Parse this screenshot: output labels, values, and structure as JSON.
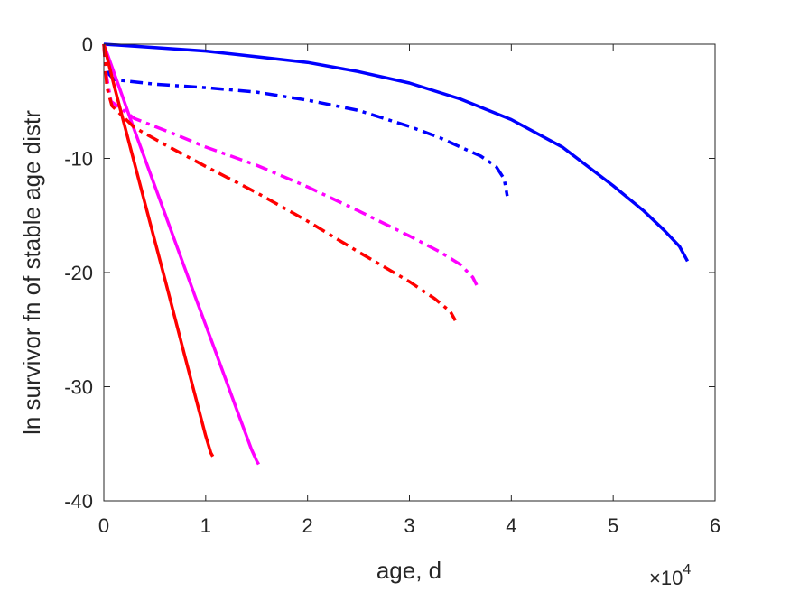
{
  "chart_data": {
    "type": "line",
    "title": "",
    "xlabel": "age, d",
    "ylabel": "ln survivor fn of stable age distr",
    "x_exponent_label": {
      "base": "×10",
      "exp": "4"
    },
    "xlim": [
      0,
      60000
    ],
    "ylim": [
      -40,
      0
    ],
    "xticks": [
      0,
      10000,
      20000,
      30000,
      40000,
      50000,
      60000
    ],
    "xtick_labels": [
      "0",
      "1",
      "2",
      "3",
      "4",
      "5",
      "6"
    ],
    "yticks": [
      0,
      -10,
      -20,
      -30,
      -40
    ],
    "ytick_labels": [
      "0",
      "-10",
      "-20",
      "-30",
      "-40"
    ],
    "grid": false,
    "legend": "none",
    "series": [
      {
        "color": "#0000ff",
        "style": "solid",
        "x": [
          0,
          5000,
          10000,
          15000,
          20000,
          25000,
          30000,
          35000,
          40000,
          45000,
          50000,
          53000,
          55000,
          56500,
          57300
        ],
        "y": [
          0,
          -0.3,
          -0.6,
          -1.1,
          -1.6,
          -2.4,
          -3.4,
          -4.8,
          -6.6,
          -9.0,
          -12.4,
          -14.6,
          -16.3,
          -17.7,
          -19
        ]
      },
      {
        "color": "#0000ff",
        "style": "dashdot",
        "x": [
          0,
          200,
          500,
          1000,
          5000,
          10000,
          15000,
          20000,
          25000,
          30000,
          33000,
          35000,
          37000,
          38500,
          39300,
          39600
        ],
        "y": [
          0,
          -1.7,
          -2.6,
          -3.1,
          -3.5,
          -3.8,
          -4.2,
          -4.9,
          -5.8,
          -7.2,
          -8.2,
          -9.0,
          -9.8,
          -10.7,
          -11.8,
          -13.3
        ]
      },
      {
        "color": "#ff00ff",
        "style": "solid",
        "x": [
          0,
          1000,
          3000,
          5000,
          7000,
          9000,
          11000,
          13000,
          14500,
          15000,
          15200
        ],
        "y": [
          0,
          -2.5,
          -7.5,
          -12.4,
          -17.3,
          -22.2,
          -27.0,
          -31.9,
          -35.5,
          -36.5,
          -36.8
        ]
      },
      {
        "color": "#ff00ff",
        "style": "dashdot",
        "x": [
          0,
          200,
          700,
          3000,
          7000,
          10000,
          15000,
          20000,
          25000,
          30000,
          33000,
          35000,
          36200,
          36600
        ],
        "y": [
          0,
          -2.5,
          -5.0,
          -6.5,
          -7.9,
          -9.0,
          -10.6,
          -12.5,
          -14.6,
          -16.8,
          -18.2,
          -19.3,
          -20.4,
          -21.1
        ]
      },
      {
        "color": "#ff0000",
        "style": "solid",
        "x": [
          0,
          1000,
          2000,
          4000,
          6000,
          8000,
          10000,
          10500,
          10700
        ],
        "y": [
          0,
          -3.6,
          -7.0,
          -13.8,
          -20.6,
          -27.5,
          -34.3,
          -35.8,
          -36.1
        ]
      },
      {
        "color": "#ff0000",
        "style": "dashdot",
        "x": [
          0,
          300,
          800,
          3000,
          6000,
          10000,
          15000,
          20000,
          25000,
          30000,
          32500,
          34000,
          34500
        ],
        "y": [
          0,
          -3.8,
          -5.4,
          -7.3,
          -8.8,
          -10.7,
          -13.0,
          -15.5,
          -18.2,
          -20.8,
          -22.3,
          -23.4,
          -24.2
        ]
      }
    ]
  }
}
